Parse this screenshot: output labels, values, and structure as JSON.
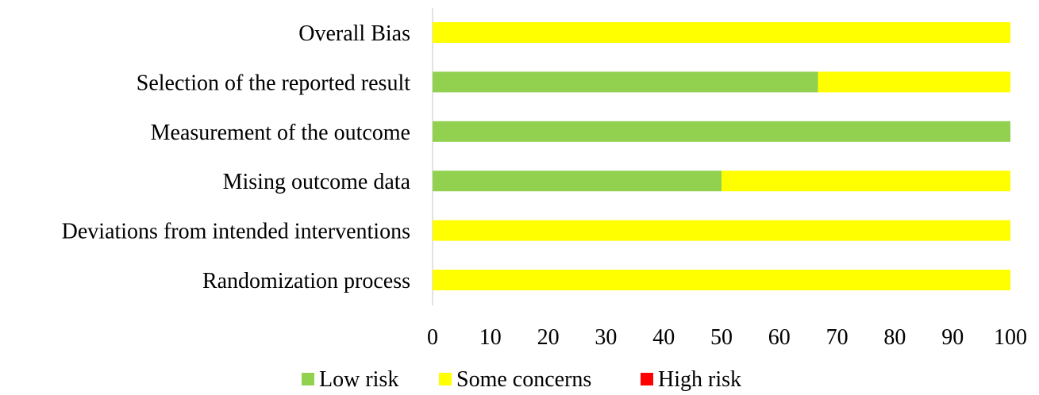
{
  "chart_data": {
    "type": "bar",
    "orientation": "horizontal",
    "stacked": true,
    "title": "",
    "xlabel": "",
    "ylabel": "",
    "categories": [
      "Overall Bias",
      "Selection of the reported result",
      "Measurement of the outcome",
      "Mising outcome data",
      "Deviations from intended interventions",
      "Randomization process"
    ],
    "series": [
      {
        "name": "Low risk",
        "color": "#92D050",
        "values": [
          0,
          66.7,
          100,
          50,
          0,
          0
        ]
      },
      {
        "name": "Some concerns",
        "color": "#FFFF00",
        "values": [
          100,
          33.3,
          0,
          50,
          100,
          100
        ]
      },
      {
        "name": "High risk",
        "color": "#FF0000",
        "values": [
          0,
          0,
          0,
          0,
          0,
          0
        ]
      }
    ],
    "xlim": [
      0,
      100
    ],
    "xticks": [
      "0",
      "10",
      "20",
      "30",
      "40",
      "50",
      "60",
      "70",
      "80",
      "90",
      "100"
    ],
    "grid": false,
    "legend_position": "bottom",
    "axis_color": "#D9D9D9"
  }
}
